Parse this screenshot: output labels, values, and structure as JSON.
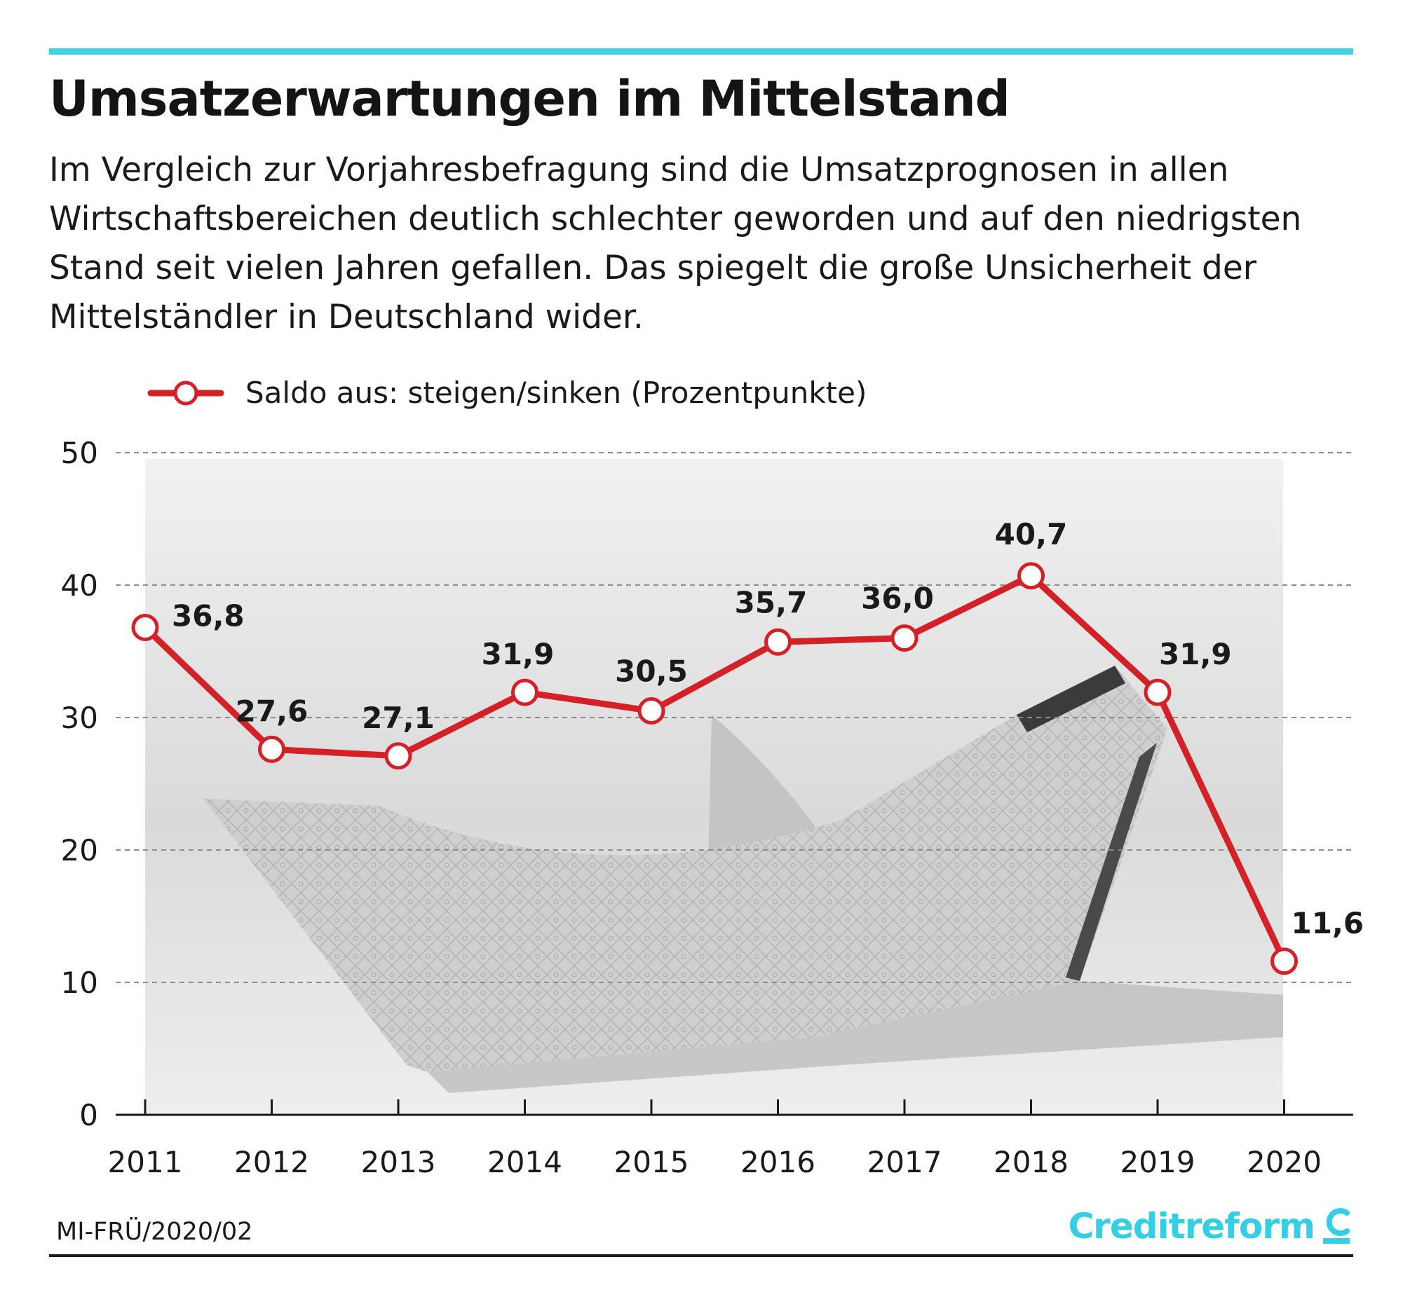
{
  "header": {
    "title": "Umsatzerwartungen im Mittelstand",
    "subtitle": "Im Vergleich zur Vorjahresbefragung sind die Umsatzprognosen in allen Wirtschaftsbereichen deutlich schlechter geworden und auf den niedrigsten Stand seit vielen Jahren gefallen. Das spiegelt die große Unsicherheit der Mittelständler in Deutschland wider."
  },
  "colors": {
    "accent_rule": "#3fd3e3",
    "series_line": "#d42027",
    "logo": "#34cfe2",
    "text": "#1a1a1a"
  },
  "chart_data": {
    "type": "line",
    "title": "Umsatzerwartungen im Mittelstand",
    "xlabel": "",
    "ylabel": "",
    "ylim": [
      0,
      50
    ],
    "yticks": [
      0,
      10,
      20,
      30,
      40,
      50
    ],
    "grid": true,
    "legend_position": "top-left",
    "categories": [
      "2011",
      "2012",
      "2013",
      "2014",
      "2015",
      "2016",
      "2017",
      "2018",
      "2019",
      "2020"
    ],
    "series": [
      {
        "name": "Saldo aus: steigen/sinken (Prozentpunkte)",
        "values": [
          36.8,
          27.6,
          27.1,
          31.9,
          30.5,
          35.7,
          36.0,
          40.7,
          31.9,
          11.6
        ],
        "labels": [
          "36,8",
          "27,6",
          "27,1",
          "31,9",
          "30,5",
          "35,7",
          "36,0",
          "40,7",
          "31,9",
          "11,6"
        ]
      }
    ]
  },
  "footer": {
    "source": "MI-FRÜ/2020/02",
    "logo_text": "Creditreform"
  }
}
